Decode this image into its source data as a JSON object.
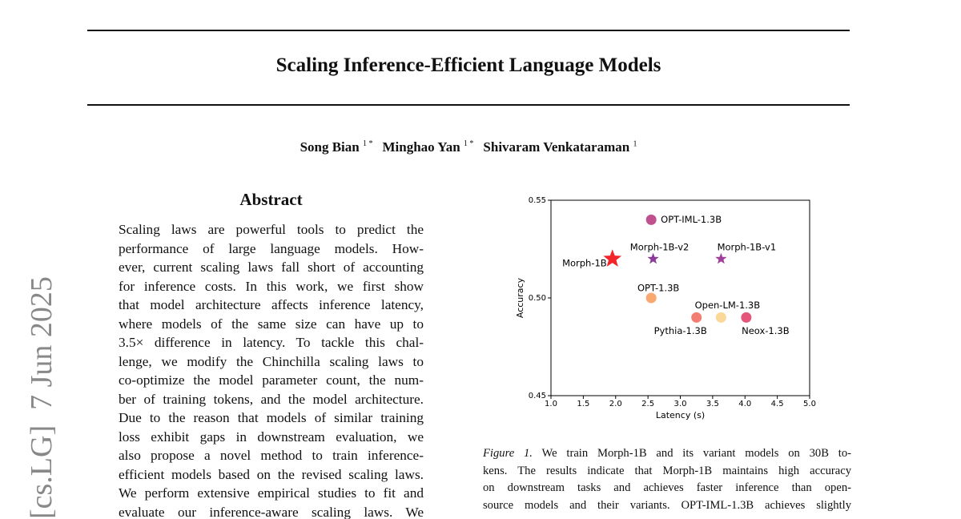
{
  "title": "Scaling Inference-Efficient Language Models",
  "authors": [
    {
      "name": "Song Bian",
      "affil": "1 *"
    },
    {
      "name": "Minghao Yan",
      "affil": "1 *"
    },
    {
      "name": "Shivaram Venkataraman",
      "affil": "1"
    }
  ],
  "stamp": "[cs.LG]  7 Jun 2025",
  "abstract": {
    "heading": "Abstract",
    "lines": [
      "Scaling laws are powerful tools to predict the",
      "performance of large language models. How-",
      "ever, current scaling laws fall short of accounting",
      "for inference costs. In this work, we first show",
      "that model architecture affects inference latency,",
      "where models of the same size can have up to",
      "3.5× difference in latency. To tackle this chal-",
      "lenge, we modify the Chinchilla scaling laws to",
      "co-optimize the model parameter count, the num-",
      "ber of training tokens, and the model architecture.",
      "Due to the reason that models of similar training",
      "loss exhibit gaps in downstream evaluation, we",
      "also propose a novel method to train inference-",
      "efficient models based on the revised scaling laws.",
      "We perform extensive empirical studies to fit and",
      "evaluate our inference-aware scaling laws. We"
    ]
  },
  "figure_caption": {
    "label": "Figure 1.",
    "lines": [
      "We train Morph-1B and its variant models on 30B to-",
      "kens. The results indicate that Morph-1B maintains high accuracy",
      "on downstream tasks and achieves faster inference than open-",
      "source models and their variants. OPT-IML-1.3B achieves slightly"
    ]
  },
  "chart_data": {
    "type": "scatter",
    "x_label": "Latency (s)",
    "y_label": "Accuracy",
    "xlim": [
      1.0,
      5.0
    ],
    "ylim": [
      0.45,
      0.55
    ],
    "xticks": [
      {
        "value": 1.0,
        "label": "1.0"
      },
      1.5,
      {
        "value": 2.0,
        "label": "2.0"
      },
      2.5,
      {
        "value": 3.0,
        "label": "3.0"
      },
      3.5,
      {
        "value": 4.0,
        "label": "4.0"
      },
      4.5,
      {
        "value": 5.0,
        "label": "5.0"
      }
    ],
    "yticks": [
      0.45,
      {
        "value": 0.5,
        "label": "0.50"
      },
      0.55
    ],
    "series": [
      {
        "name": "OPT-IML-1.3B",
        "color": "#c0508e",
        "marker": "circle",
        "x": [
          2.55
        ],
        "values": [
          0.54
        ]
      },
      {
        "name": "Morph-1B",
        "color": "#f0262a",
        "marker": "star",
        "x": [
          1.95
        ],
        "values": [
          0.52
        ]
      },
      {
        "name": "Morph-1B-v2",
        "color": "#8b3a9a",
        "marker": "star",
        "x": [
          2.58
        ],
        "values": [
          0.52
        ]
      },
      {
        "name": "Morph-1B-v1",
        "color": "#a0409a",
        "marker": "star",
        "x": [
          3.63
        ],
        "values": [
          0.52
        ]
      },
      {
        "name": "OPT-1.3B",
        "color": "#f9a870",
        "marker": "circle",
        "x": [
          2.55
        ],
        "values": [
          0.5
        ]
      },
      {
        "name": "Pythia-1.3B",
        "color": "#f27d72",
        "marker": "circle",
        "x": [
          3.25
        ],
        "values": [
          0.49
        ]
      },
      {
        "name": "Open-LM-1.3B",
        "color": "#fcd79a",
        "marker": "circle",
        "x": [
          3.63
        ],
        "values": [
          0.49
        ]
      },
      {
        "name": "Neox-1.3B",
        "color": "#e5577a",
        "marker": "circle",
        "x": [
          4.02
        ],
        "values": [
          0.49
        ]
      }
    ]
  }
}
